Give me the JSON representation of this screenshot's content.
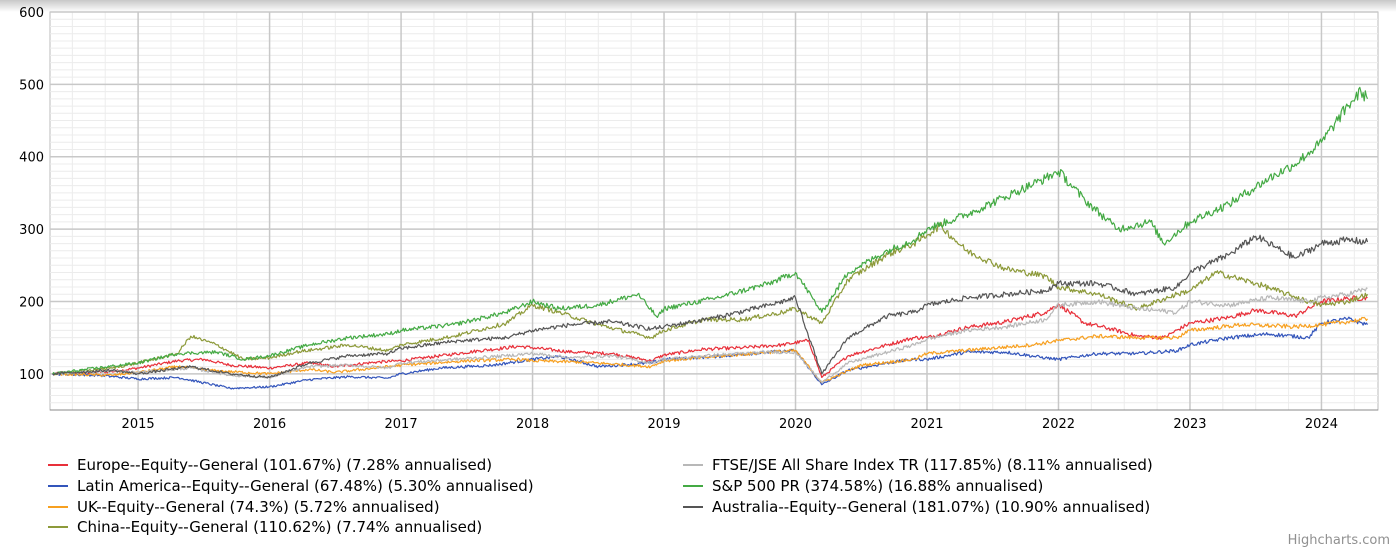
{
  "chart_data": {
    "type": "line",
    "title": "",
    "xlabel": "",
    "ylabel": "",
    "x_ticks": [
      "2015",
      "2016",
      "2017",
      "2018",
      "2019",
      "2020",
      "2021",
      "2022",
      "2023",
      "2024"
    ],
    "y_ticks": [
      100,
      200,
      300,
      400,
      500,
      600
    ],
    "ylim": [
      50,
      600
    ],
    "xlim": [
      2014.33,
      2024.43
    ],
    "grid": true,
    "legend_position": "bottom",
    "series": [
      {
        "name": "Europe--Equity--General (101.67%) (7.28% annualised)",
        "color": "#e8303a",
        "x": [
          2014.35,
          2014.8,
          2015.0,
          2015.3,
          2015.5,
          2015.7,
          2016.0,
          2016.3,
          2016.5,
          2016.8,
          2017.0,
          2017.3,
          2017.6,
          2017.9,
          2018.0,
          2018.3,
          2018.6,
          2018.9,
          2019.0,
          2019.3,
          2019.6,
          2019.9,
          2020.1,
          2020.2,
          2020.4,
          2020.7,
          2020.9,
          2021.0,
          2021.3,
          2021.6,
          2021.9,
          2022.0,
          2022.2,
          2022.4,
          2022.6,
          2022.8,
          2023.0,
          2023.3,
          2023.5,
          2023.8,
          2024.0,
          2024.2,
          2024.35
        ],
        "y": [
          100,
          103,
          108,
          118,
          120,
          112,
          108,
          115,
          110,
          116,
          118,
          125,
          132,
          138,
          136,
          130,
          128,
          118,
          126,
          134,
          136,
          140,
          146,
          95,
          125,
          140,
          150,
          150,
          164,
          172,
          185,
          196,
          170,
          162,
          152,
          150,
          170,
          178,
          188,
          180,
          200,
          204,
          205
        ]
      },
      {
        "name": "Latin America--Equity--General (67.48%) (5.30% annualised)",
        "color": "#3355bb",
        "x": [
          2014.35,
          2014.7,
          2015.0,
          2015.3,
          2015.7,
          2016.0,
          2016.3,
          2016.6,
          2016.9,
          2017.0,
          2017.3,
          2017.7,
          2018.0,
          2018.2,
          2018.5,
          2018.9,
          2019.0,
          2019.4,
          2019.8,
          2020.0,
          2020.2,
          2020.4,
          2020.7,
          2020.9,
          2021.0,
          2021.3,
          2021.6,
          2021.9,
          2022.0,
          2022.3,
          2022.6,
          2022.9,
          2023.0,
          2023.3,
          2023.6,
          2023.9,
          2024.0,
          2024.2,
          2024.35
        ],
        "y": [
          100,
          98,
          93,
          95,
          80,
          82,
          92,
          96,
          94,
          100,
          108,
          112,
          120,
          124,
          110,
          115,
          120,
          124,
          130,
          132,
          85,
          105,
          115,
          120,
          120,
          130,
          130,
          122,
          120,
          128,
          128,
          132,
          140,
          150,
          155,
          150,
          170,
          176,
          168
        ]
      },
      {
        "name": "UK--Equity--General (74.3%) (5.72% annualised)",
        "color": "#f7a020",
        "x": [
          2014.35,
          2014.8,
          2015.0,
          2015.3,
          2015.6,
          2016.0,
          2016.3,
          2016.5,
          2016.9,
          2017.0,
          2017.5,
          2017.9,
          2018.0,
          2018.4,
          2018.9,
          2019.0,
          2019.4,
          2019.8,
          2020.0,
          2020.2,
          2020.5,
          2020.9,
          2021.0,
          2021.4,
          2021.8,
          2022.0,
          2022.3,
          2022.6,
          2022.9,
          2023.0,
          2023.4,
          2023.8,
          2024.0,
          2024.2,
          2024.35
        ],
        "y": [
          100,
          98,
          102,
          110,
          104,
          100,
          106,
          102,
          110,
          112,
          118,
          120,
          118,
          116,
          110,
          118,
          124,
          130,
          132,
          88,
          112,
          120,
          128,
          134,
          140,
          146,
          152,
          150,
          150,
          160,
          168,
          165,
          168,
          172,
          176
        ]
      },
      {
        "name": "China--Equity--General (110.62%) (7.74% annualised)",
        "color": "#8d9a3a",
        "x": [
          2014.35,
          2014.8,
          2015.0,
          2015.3,
          2015.4,
          2015.6,
          2015.8,
          2016.0,
          2016.2,
          2016.6,
          2016.9,
          2017.0,
          2017.4,
          2017.8,
          2018.0,
          2018.2,
          2018.5,
          2018.9,
          2019.0,
          2019.3,
          2019.6,
          2019.9,
          2020.0,
          2020.2,
          2020.4,
          2020.7,
          2020.9,
          2021.0,
          2021.1,
          2021.3,
          2021.6,
          2021.9,
          2022.0,
          2022.3,
          2022.6,
          2022.9,
          2023.0,
          2023.2,
          2023.5,
          2023.9,
          2024.0,
          2024.2,
          2024.35
        ],
        "y": [
          100,
          108,
          115,
          128,
          152,
          140,
          120,
          122,
          130,
          140,
          132,
          140,
          152,
          170,
          195,
          185,
          168,
          150,
          160,
          175,
          175,
          185,
          190,
          170,
          230,
          265,
          280,
          292,
          305,
          270,
          245,
          235,
          220,
          210,
          190,
          210,
          215,
          240,
          225,
          200,
          195,
          200,
          210
        ]
      },
      {
        "name": "FTSE/JSE All Share Index TR (117.85%) (8.11% annualised)",
        "color": "#b8b8b8",
        "x": [
          2014.35,
          2014.8,
          2015.0,
          2015.4,
          2015.7,
          2016.0,
          2016.3,
          2016.6,
          2016.9,
          2017.0,
          2017.4,
          2017.8,
          2018.0,
          2018.3,
          2018.6,
          2018.9,
          2019.0,
          2019.4,
          2019.8,
          2020.0,
          2020.2,
          2020.4,
          2020.7,
          2020.9,
          2021.0,
          2021.3,
          2021.6,
          2021.9,
          2022.0,
          2022.3,
          2022.6,
          2022.9,
          2023.0,
          2023.3,
          2023.6,
          2023.9,
          2024.0,
          2024.2,
          2024.35
        ],
        "y": [
          100,
          104,
          102,
          108,
          98,
          95,
          110,
          112,
          108,
          115,
          120,
          125,
          128,
          122,
          125,
          115,
          120,
          126,
          130,
          130,
          88,
          115,
          130,
          140,
          148,
          160,
          165,
          175,
          195,
          200,
          190,
          185,
          200,
          195,
          205,
          200,
          205,
          210,
          218
        ]
      },
      {
        "name": "S&P 500 PR (374.58%) (16.88% annualised)",
        "color": "#44aa44",
        "x": [
          2014.35,
          2014.6,
          2015.0,
          2015.3,
          2015.6,
          2015.8,
          2016.0,
          2016.3,
          2016.6,
          2016.9,
          2017.0,
          2017.4,
          2017.8,
          2018.0,
          2018.2,
          2018.5,
          2018.8,
          2018.95,
          2019.0,
          2019.4,
          2019.8,
          2020.0,
          2020.2,
          2020.4,
          2020.7,
          2020.9,
          2021.0,
          2021.3,
          2021.6,
          2021.9,
          2022.0,
          2022.2,
          2022.45,
          2022.7,
          2022.8,
          2023.0,
          2023.3,
          2023.6,
          2023.8,
          2024.0,
          2024.2,
          2024.3,
          2024.35
        ],
        "y": [
          100,
          106,
          115,
          128,
          130,
          120,
          125,
          140,
          150,
          155,
          160,
          168,
          185,
          200,
          190,
          195,
          210,
          178,
          190,
          205,
          225,
          240,
          185,
          240,
          270,
          285,
          300,
          320,
          345,
          370,
          380,
          340,
          300,
          310,
          280,
          310,
          335,
          370,
          390,
          420,
          470,
          490,
          480
        ]
      },
      {
        "name": "Australia--Equity--General (181.07%) (10.90% annualised)",
        "color": "#555555",
        "x": [
          2014.35,
          2014.8,
          2015.0,
          2015.4,
          2015.7,
          2016.0,
          2016.3,
          2016.6,
          2016.9,
          2017.0,
          2017.4,
          2017.8,
          2018.0,
          2018.3,
          2018.6,
          2018.9,
          2019.0,
          2019.4,
          2019.8,
          2020.0,
          2020.2,
          2020.4,
          2020.7,
          2020.9,
          2021.0,
          2021.3,
          2021.6,
          2021.9,
          2022.0,
          2022.3,
          2022.6,
          2022.9,
          2023.0,
          2023.3,
          2023.5,
          2023.8,
          2024.0,
          2024.2,
          2024.35
        ],
        "y": [
          100,
          105,
          100,
          110,
          100,
          95,
          115,
          125,
          128,
          135,
          145,
          150,
          160,
          168,
          172,
          162,
          165,
          178,
          195,
          205,
          100,
          150,
          180,
          185,
          195,
          205,
          210,
          215,
          225,
          225,
          210,
          220,
          240,
          265,
          290,
          260,
          280,
          285,
          282
        ]
      }
    ]
  }
}
